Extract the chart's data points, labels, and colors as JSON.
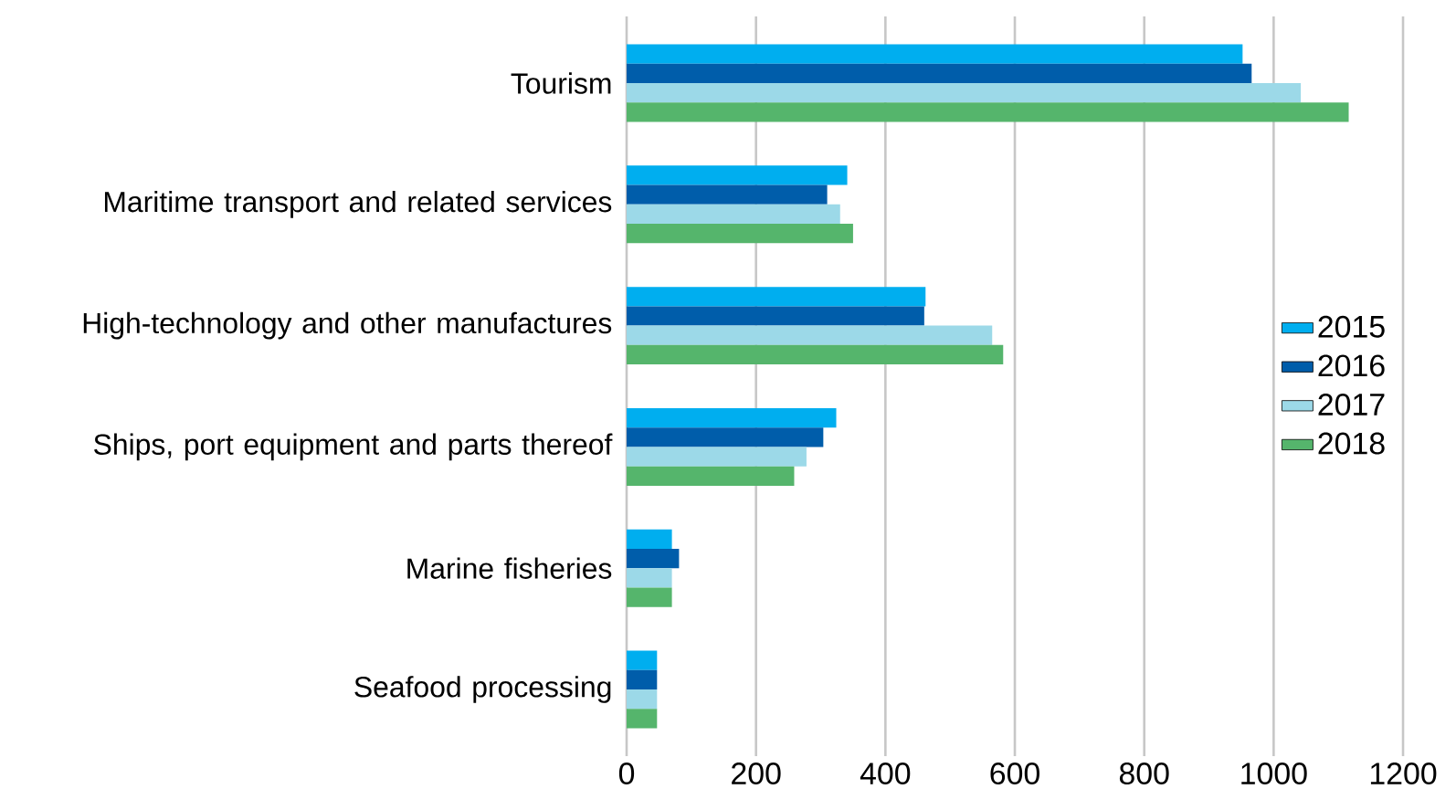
{
  "chart_data": {
    "type": "bar",
    "orientation": "horizontal",
    "categories": [
      "Tourism",
      "Maritime transport and related services",
      "High-technology and other manufactures",
      "Ships, port equipment and parts thereof",
      "Marine fisheries",
      "Seafood processing"
    ],
    "series": [
      {
        "name": "2015",
        "color": "#00aeef",
        "values": [
          952,
          341,
          462,
          324,
          70,
          47
        ]
      },
      {
        "name": "2016",
        "color": "#005daa",
        "values": [
          966,
          310,
          460,
          304,
          81,
          47
        ]
      },
      {
        "name": "2017",
        "color": "#9cd9e8",
        "values": [
          1042,
          330,
          565,
          278,
          70,
          47
        ]
      },
      {
        "name": "2018",
        "color": "#55b56c",
        "values": [
          1116,
          350,
          582,
          259,
          70,
          47
        ]
      }
    ],
    "xlim": [
      0,
      1200
    ],
    "xticks": [
      0,
      200,
      400,
      600,
      800,
      1000,
      1200
    ],
    "grid": "x",
    "legend": "right"
  }
}
